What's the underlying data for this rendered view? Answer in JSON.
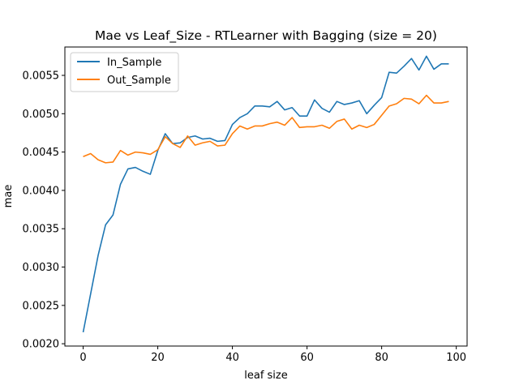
{
  "chart_data": {
    "type": "line",
    "title": "Mae vs Leaf_Size - RTLearner with Bagging (size = 20)",
    "xlabel": "leaf size",
    "ylabel": "mae",
    "xlim": [
      -4.9,
      102.9
    ],
    "ylim": [
      0.00197,
      0.00587
    ],
    "xticks": [
      0,
      20,
      40,
      60,
      80,
      100
    ],
    "yticks": [
      0.002,
      0.0025,
      0.003,
      0.0035,
      0.004,
      0.0045,
      0.005,
      0.0055
    ],
    "ytick_labels": [
      "0.0020",
      "0.0025",
      "0.0030",
      "0.0035",
      "0.0040",
      "0.0045",
      "0.0050",
      "0.0055"
    ],
    "grid": false,
    "legend_position": "upper-left",
    "x": [
      0,
      2,
      4,
      6,
      8,
      10,
      12,
      14,
      16,
      18,
      20,
      22,
      24,
      26,
      28,
      30,
      32,
      34,
      36,
      38,
      40,
      42,
      44,
      46,
      48,
      50,
      52,
      54,
      56,
      58,
      60,
      62,
      64,
      66,
      68,
      70,
      72,
      74,
      76,
      78,
      80,
      82,
      84,
      86,
      88,
      90,
      92,
      94,
      96,
      98
    ],
    "series": [
      {
        "name": "In_Sample",
        "color": "#1f77b4",
        "values": [
          0.00215,
          0.00265,
          0.00315,
          0.00355,
          0.00368,
          0.00408,
          0.00428,
          0.0043,
          0.00425,
          0.00421,
          0.00452,
          0.00474,
          0.00461,
          0.00462,
          0.00469,
          0.00471,
          0.00467,
          0.00468,
          0.00464,
          0.00465,
          0.00486,
          0.00495,
          0.005,
          0.0051,
          0.0051,
          0.00509,
          0.00516,
          0.00505,
          0.00508,
          0.00497,
          0.00497,
          0.00518,
          0.00507,
          0.00502,
          0.00516,
          0.00512,
          0.00514,
          0.00517,
          0.005,
          0.00511,
          0.00521,
          0.00554,
          0.00553,
          0.00562,
          0.00572,
          0.00557,
          0.00575,
          0.00558,
          0.00565,
          0.00565
        ]
      },
      {
        "name": "Out_Sample",
        "color": "#ff7f0e",
        "values": [
          0.00444,
          0.00448,
          0.0044,
          0.00436,
          0.00437,
          0.00452,
          0.00446,
          0.0045,
          0.00449,
          0.00447,
          0.00453,
          0.0047,
          0.00461,
          0.00456,
          0.00471,
          0.00459,
          0.00462,
          0.00464,
          0.00458,
          0.00459,
          0.00474,
          0.00484,
          0.0048,
          0.00484,
          0.00484,
          0.00487,
          0.00489,
          0.00485,
          0.00495,
          0.00482,
          0.00483,
          0.00483,
          0.00485,
          0.00481,
          0.0049,
          0.00493,
          0.0048,
          0.00485,
          0.00482,
          0.00486,
          0.00498,
          0.0051,
          0.00513,
          0.0052,
          0.00519,
          0.00513,
          0.00524,
          0.00514,
          0.00514,
          0.00516
        ]
      }
    ]
  }
}
